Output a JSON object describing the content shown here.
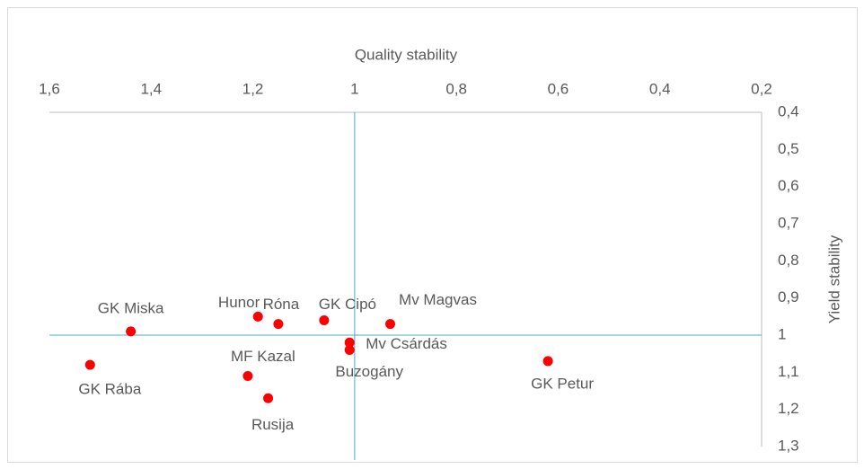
{
  "chart_data": {
    "type": "scatter",
    "x_title": "Quality stability",
    "y_title": "Yield stability",
    "point_labels": [
      "GK Miska",
      "GK Rába",
      "Hunor",
      "Róna",
      "GK Cipó",
      "Mv Magvas",
      "Mv Csárdás",
      "Buzogány",
      "MF Kazal",
      "Rusija",
      "GK Petur"
    ],
    "x": [
      1.44,
      1.52,
      1.19,
      1.15,
      1.06,
      0.93,
      1.01,
      1.01,
      1.21,
      1.17,
      0.62
    ],
    "values": [
      0.99,
      1.08,
      0.95,
      0.97,
      0.96,
      0.97,
      1.02,
      1.04,
      1.11,
      1.17,
      1.07
    ],
    "color": "#ff0000",
    "xlim": [
      1.6,
      0.2
    ],
    "xticks": [
      {
        "value": 1.6,
        "label": "1,6"
      },
      {
        "value": 1.4,
        "label": "1,4"
      },
      {
        "value": 1.2,
        "label": "1,2"
      },
      1,
      {
        "value": 0.8,
        "label": "0,8"
      },
      {
        "value": 0.6,
        "label": "0,6"
      },
      {
        "value": 0.4,
        "label": "0,4"
      },
      {
        "value": 0.2,
        "label": "0,2"
      }
    ],
    "ylim": [
      0.4,
      1.3
    ],
    "yticks": [
      {
        "value": 0.4,
        "label": "0,4"
      },
      {
        "value": 0.5,
        "label": "0,5"
      },
      {
        "value": 0.6,
        "label": "0,6"
      },
      {
        "value": 0.7,
        "label": "0,7"
      },
      {
        "value": 0.8,
        "label": "0,8"
      },
      {
        "value": 0.9,
        "label": "0,9"
      },
      1,
      {
        "value": 1.1,
        "label": "1,1"
      },
      {
        "value": 1.2,
        "label": "1,2"
      },
      {
        "value": 1.3,
        "label": "1,3"
      }
    ],
    "x_cross": 1,
    "y_cross": 1,
    "cross_color": "#4bacc6",
    "grid": false
  }
}
